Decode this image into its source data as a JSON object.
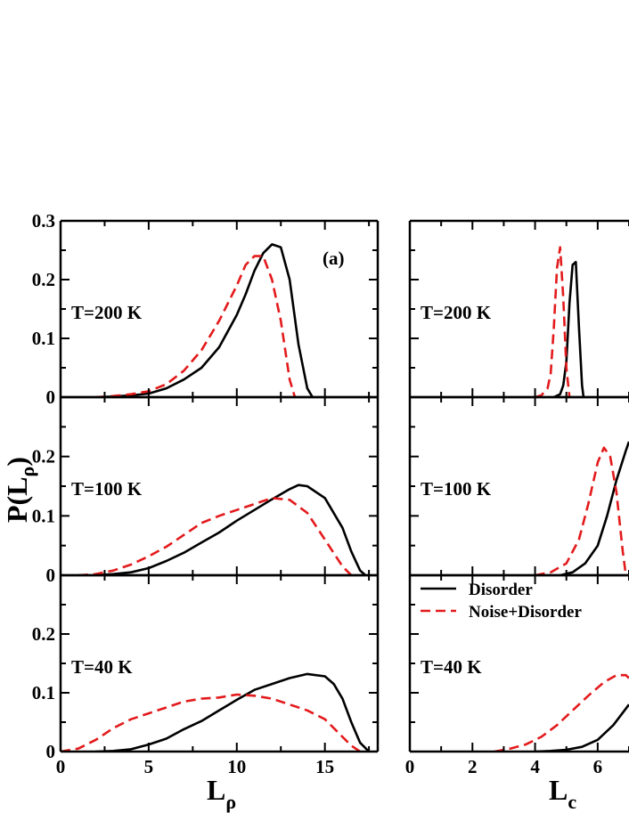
{
  "chart_data": [
    {
      "type": "line",
      "panel": "left",
      "corner_label": "(a)",
      "xlabel": "L",
      "xlabel_sub": "ρ",
      "ylabel": "P(L",
      "ylabel_sub": "ρ",
      "xlim": [
        0,
        18
      ],
      "xticks": [
        0,
        5,
        10,
        15
      ],
      "xtick_labels": [
        "0",
        "5",
        "10",
        "15"
      ],
      "legend": null,
      "subplots": [
        {
          "label": "T=200 K",
          "ylim": [
            0,
            0.3
          ],
          "yticks": [
            0,
            0.1,
            0.2,
            0.3
          ],
          "ytick_labels": [
            "0",
            "0.1",
            "0.2",
            "0.3"
          ],
          "series": [
            {
              "color": "#000000",
              "style": "solid",
              "x": [
                2,
                3,
                4,
                5,
                6,
                7,
                8,
                9,
                10,
                10.5,
                11,
                11.5,
                12,
                12.5,
                13,
                13.5,
                14,
                14.3
              ],
              "y": [
                0,
                0.001,
                0.003,
                0.006,
                0.015,
                0.03,
                0.05,
                0.085,
                0.14,
                0.175,
                0.215,
                0.245,
                0.26,
                0.255,
                0.2,
                0.09,
                0.015,
                0
              ]
            },
            {
              "color": "#e31a1c",
              "style": "dashed",
              "x": [
                2,
                3,
                4,
                5,
                6,
                7,
                8,
                9,
                10,
                10.5,
                11,
                11.5,
                12,
                12.5,
                13,
                13.3
              ],
              "y": [
                0,
                0.002,
                0.005,
                0.01,
                0.022,
                0.045,
                0.08,
                0.13,
                0.19,
                0.225,
                0.24,
                0.24,
                0.2,
                0.13,
                0.03,
                0
              ]
            }
          ]
        },
        {
          "label": "T=100 K",
          "ylim": [
            0,
            0.3
          ],
          "yticks": [
            0,
            0.1,
            0.2
          ],
          "ytick_labels": [
            "0",
            "0.1",
            "0.2"
          ],
          "series": [
            {
              "color": "#000000",
              "style": "solid",
              "x": [
                2,
                3,
                4,
                5,
                6,
                7,
                8,
                9,
                10,
                11,
                12,
                13,
                13.5,
                14,
                15,
                16,
                16.5,
                17,
                17.3
              ],
              "y": [
                0,
                0.002,
                0.005,
                0.012,
                0.024,
                0.038,
                0.055,
                0.072,
                0.092,
                0.11,
                0.128,
                0.145,
                0.152,
                0.15,
                0.13,
                0.08,
                0.04,
                0.008,
                0
              ]
            },
            {
              "color": "#e31a1c",
              "style": "dashed",
              "x": [
                1,
                2,
                3,
                4,
                5,
                6,
                7,
                8,
                9,
                10,
                11,
                12,
                13,
                14,
                15,
                16,
                16.5
              ],
              "y": [
                0,
                0.002,
                0.008,
                0.018,
                0.032,
                0.048,
                0.068,
                0.088,
                0.1,
                0.11,
                0.12,
                0.13,
                0.127,
                0.105,
                0.06,
                0.015,
                0
              ]
            }
          ]
        },
        {
          "label": "T=40 K",
          "ylim": [
            0,
            0.3
          ],
          "yticks": [
            0,
            0.1,
            0.2
          ],
          "ytick_labels": [
            "0",
            "0.1",
            "0.2"
          ],
          "series": [
            {
              "color": "#000000",
              "style": "solid",
              "x": [
                2,
                3,
                4,
                5,
                6,
                7,
                8,
                9,
                10,
                11,
                12,
                13,
                14,
                15,
                15.5,
                16,
                16.5,
                17,
                17.5
              ],
              "y": [
                0,
                0.001,
                0.004,
                0.012,
                0.022,
                0.038,
                0.052,
                0.07,
                0.088,
                0.105,
                0.115,
                0.125,
                0.132,
                0.128,
                0.115,
                0.09,
                0.05,
                0.015,
                0
              ]
            },
            {
              "color": "#e31a1c",
              "style": "dashed",
              "x": [
                0,
                1,
                2,
                3,
                4,
                5,
                6,
                7,
                8,
                9,
                10,
                11,
                12,
                13,
                14,
                15,
                16,
                16.5,
                17
              ],
              "y": [
                0,
                0.005,
                0.02,
                0.04,
                0.055,
                0.065,
                0.075,
                0.085,
                0.09,
                0.092,
                0.097,
                0.095,
                0.09,
                0.08,
                0.07,
                0.055,
                0.025,
                0.01,
                0
              ]
            }
          ]
        }
      ]
    },
    {
      "type": "line",
      "panel": "right",
      "xlabel": "L",
      "xlabel_sub": "c",
      "xlim": [
        0,
        7
      ],
      "xticks": [
        0,
        2,
        4,
        6
      ],
      "xtick_labels": [
        "0",
        "2",
        "4",
        "6"
      ],
      "legend": {
        "position": "bottom-subplot top-left",
        "entries": [
          {
            "label": "Disorder",
            "color": "#000000",
            "style": "solid"
          },
          {
            "label": "Noise+Disorder",
            "color": "#e31a1c",
            "style": "dashed"
          }
        ]
      },
      "subplots": [
        {
          "label": "T=200 K",
          "ylim": [
            0,
            0.3
          ],
          "series": [
            {
              "color": "#000000",
              "style": "solid",
              "x": [
                4.6,
                4.8,
                4.9,
                5.0,
                5.1,
                5.2,
                5.3,
                5.4,
                5.5,
                5.55
              ],
              "y": [
                0,
                0.005,
                0.02,
                0.06,
                0.16,
                0.225,
                0.23,
                0.12,
                0.02,
                0
              ]
            },
            {
              "color": "#e31a1c",
              "style": "dashed",
              "x": [
                4.0,
                4.2,
                4.4,
                4.5,
                4.6,
                4.7,
                4.8,
                4.9,
                5.0,
                5.1
              ],
              "y": [
                0,
                0.003,
                0.015,
                0.04,
                0.12,
                0.22,
                0.255,
                0.17,
                0.05,
                0
              ]
            }
          ]
        },
        {
          "label": "T=100 K",
          "ylim": [
            0,
            0.3
          ],
          "series": [
            {
              "color": "#000000",
              "style": "solid",
              "x": [
                4.8,
                5.2,
                5.6,
                6.0,
                6.3,
                6.6,
                6.9,
                7.0
              ],
              "y": [
                0,
                0.005,
                0.02,
                0.05,
                0.1,
                0.16,
                0.21,
                0.225
              ]
            },
            {
              "color": "#e31a1c",
              "style": "dashed",
              "x": [
                4.0,
                4.5,
                5.0,
                5.4,
                5.7,
                6.0,
                6.2,
                6.4,
                6.6,
                6.8,
                6.9
              ],
              "y": [
                0,
                0.005,
                0.02,
                0.06,
                0.12,
                0.19,
                0.215,
                0.2,
                0.14,
                0.04,
                0
              ]
            }
          ]
        },
        {
          "label": "T=40 K",
          "ylim": [
            0,
            0.3
          ],
          "series": [
            {
              "color": "#000000",
              "style": "solid",
              "x": [
                4.0,
                4.5,
                5.0,
                5.5,
                6.0,
                6.5,
                7.0
              ],
              "y": [
                0,
                0.001,
                0.003,
                0.008,
                0.02,
                0.045,
                0.08
              ]
            },
            {
              "color": "#e31a1c",
              "style": "dashed",
              "x": [
                2.7,
                3.2,
                3.7,
                4.2,
                4.7,
                5.2,
                5.7,
                6.2,
                6.6,
                6.9,
                7.0
              ],
              "y": [
                0,
                0.005,
                0.012,
                0.025,
                0.045,
                0.07,
                0.095,
                0.118,
                0.13,
                0.13,
                0.125
              ]
            }
          ]
        }
      ]
    }
  ]
}
